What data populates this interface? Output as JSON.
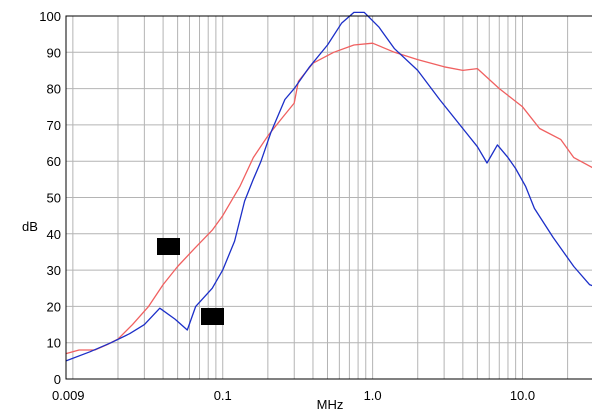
{
  "chart_data": {
    "type": "line",
    "title": "",
    "xlabel": "MHz",
    "ylabel": "dB",
    "x_scale": "log",
    "xlim": [
      0.009,
      30
    ],
    "ylim": [
      0,
      100
    ],
    "x_ticks": [
      {
        "value": 0.009,
        "label": "0.009"
      },
      {
        "value": 0.1,
        "label": "0.1"
      },
      {
        "value": 1,
        "label": "1.0"
      },
      {
        "value": 10,
        "label": "10.0"
      }
    ],
    "y_ticks": [
      0,
      10,
      20,
      30,
      40,
      50,
      60,
      70,
      80,
      90,
      100
    ],
    "grid": true,
    "series": [
      {
        "color": "#f06060",
        "points": [
          [
            0.009,
            7
          ],
          [
            0.011,
            8
          ],
          [
            0.014,
            8
          ],
          [
            0.017,
            9.5
          ],
          [
            0.02,
            11
          ],
          [
            0.025,
            15
          ],
          [
            0.032,
            20
          ],
          [
            0.04,
            26
          ],
          [
            0.05,
            31
          ],
          [
            0.065,
            36
          ],
          [
            0.085,
            41
          ],
          [
            0.1,
            45
          ],
          [
            0.13,
            53
          ],
          [
            0.16,
            61
          ],
          [
            0.2,
            67
          ],
          [
            0.25,
            72
          ],
          [
            0.3,
            76
          ],
          [
            0.32,
            82
          ],
          [
            0.4,
            87
          ],
          [
            0.55,
            90
          ],
          [
            0.75,
            92
          ],
          [
            1.0,
            92.5
          ],
          [
            1.4,
            90
          ],
          [
            2.0,
            88
          ],
          [
            3.0,
            86
          ],
          [
            4.0,
            85
          ],
          [
            5.0,
            85.5
          ],
          [
            7.0,
            80
          ],
          [
            10.0,
            75
          ],
          [
            13.0,
            69
          ],
          [
            18.0,
            66
          ],
          [
            22.0,
            61
          ],
          [
            30.0,
            58
          ]
        ]
      },
      {
        "color": "#1c2fc8",
        "points": [
          [
            0.009,
            5
          ],
          [
            0.013,
            7.5
          ],
          [
            0.018,
            10
          ],
          [
            0.024,
            12.5
          ],
          [
            0.03,
            15
          ],
          [
            0.038,
            19.5
          ],
          [
            0.048,
            16.5
          ],
          [
            0.058,
            13.5
          ],
          [
            0.066,
            20
          ],
          [
            0.085,
            25
          ],
          [
            0.1,
            30
          ],
          [
            0.12,
            38
          ],
          [
            0.14,
            49
          ],
          [
            0.16,
            55
          ],
          [
            0.18,
            60
          ],
          [
            0.21,
            68
          ],
          [
            0.26,
            77
          ],
          [
            0.3,
            80
          ],
          [
            0.38,
            86
          ],
          [
            0.5,
            92
          ],
          [
            0.62,
            98
          ],
          [
            0.75,
            101
          ],
          [
            0.88,
            101
          ],
          [
            1.1,
            97
          ],
          [
            1.4,
            91
          ],
          [
            2.0,
            85
          ],
          [
            2.8,
            77
          ],
          [
            4.0,
            69
          ],
          [
            5.0,
            64
          ],
          [
            5.8,
            59.5
          ],
          [
            6.8,
            64.5
          ],
          [
            8.0,
            61
          ],
          [
            9.0,
            58
          ],
          [
            10.5,
            53
          ],
          [
            12.0,
            47
          ],
          [
            16.0,
            39
          ],
          [
            22.0,
            31
          ],
          [
            28.0,
            26
          ],
          [
            30.0,
            25.5
          ]
        ]
      }
    ]
  }
}
